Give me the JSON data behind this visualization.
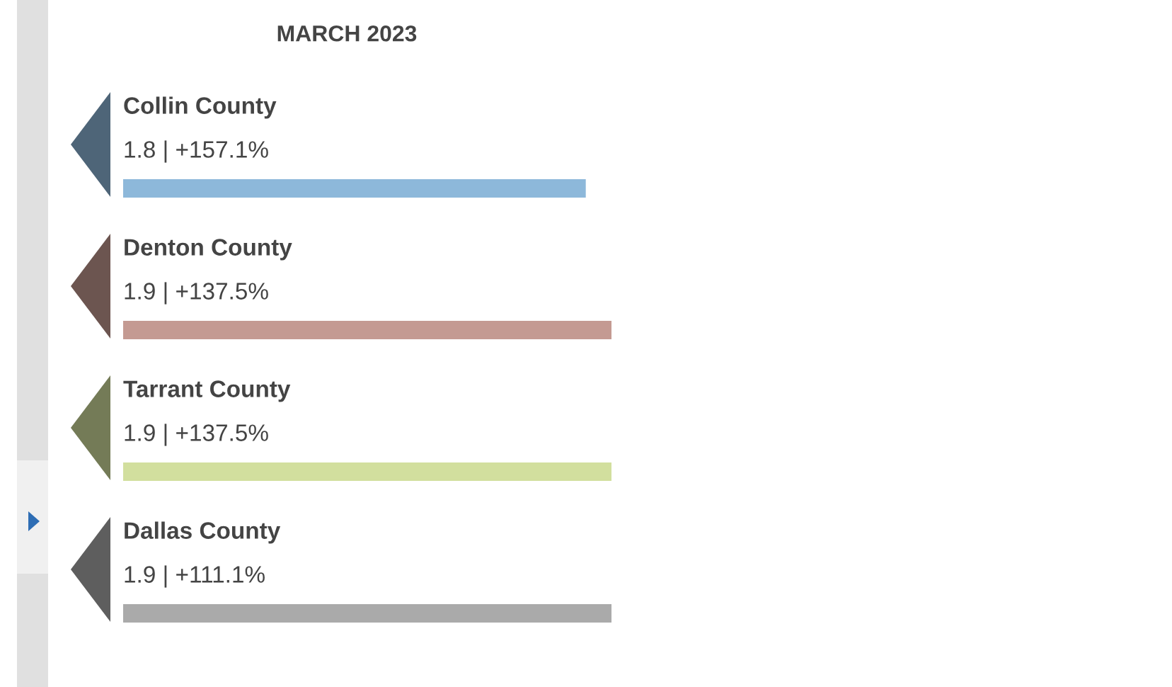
{
  "chart_data": {
    "type": "bar",
    "orientation": "horizontal",
    "title": "MARCH 2023",
    "categories": [
      "Collin County",
      "Denton County",
      "Tarrant County",
      "Dallas County"
    ],
    "values": [
      1.8,
      1.9,
      1.9,
      1.9
    ],
    "value_labels": [
      "1.8 | +157.1%",
      "1.9 | +137.5%",
      "1.9 | +137.5%",
      "1.9 | +111.1%"
    ],
    "colors": [
      "#8db8da",
      "#c49a92",
      "#d2df9e",
      "#aaaaaa"
    ],
    "xlim": [
      0,
      1.9
    ]
  }
}
